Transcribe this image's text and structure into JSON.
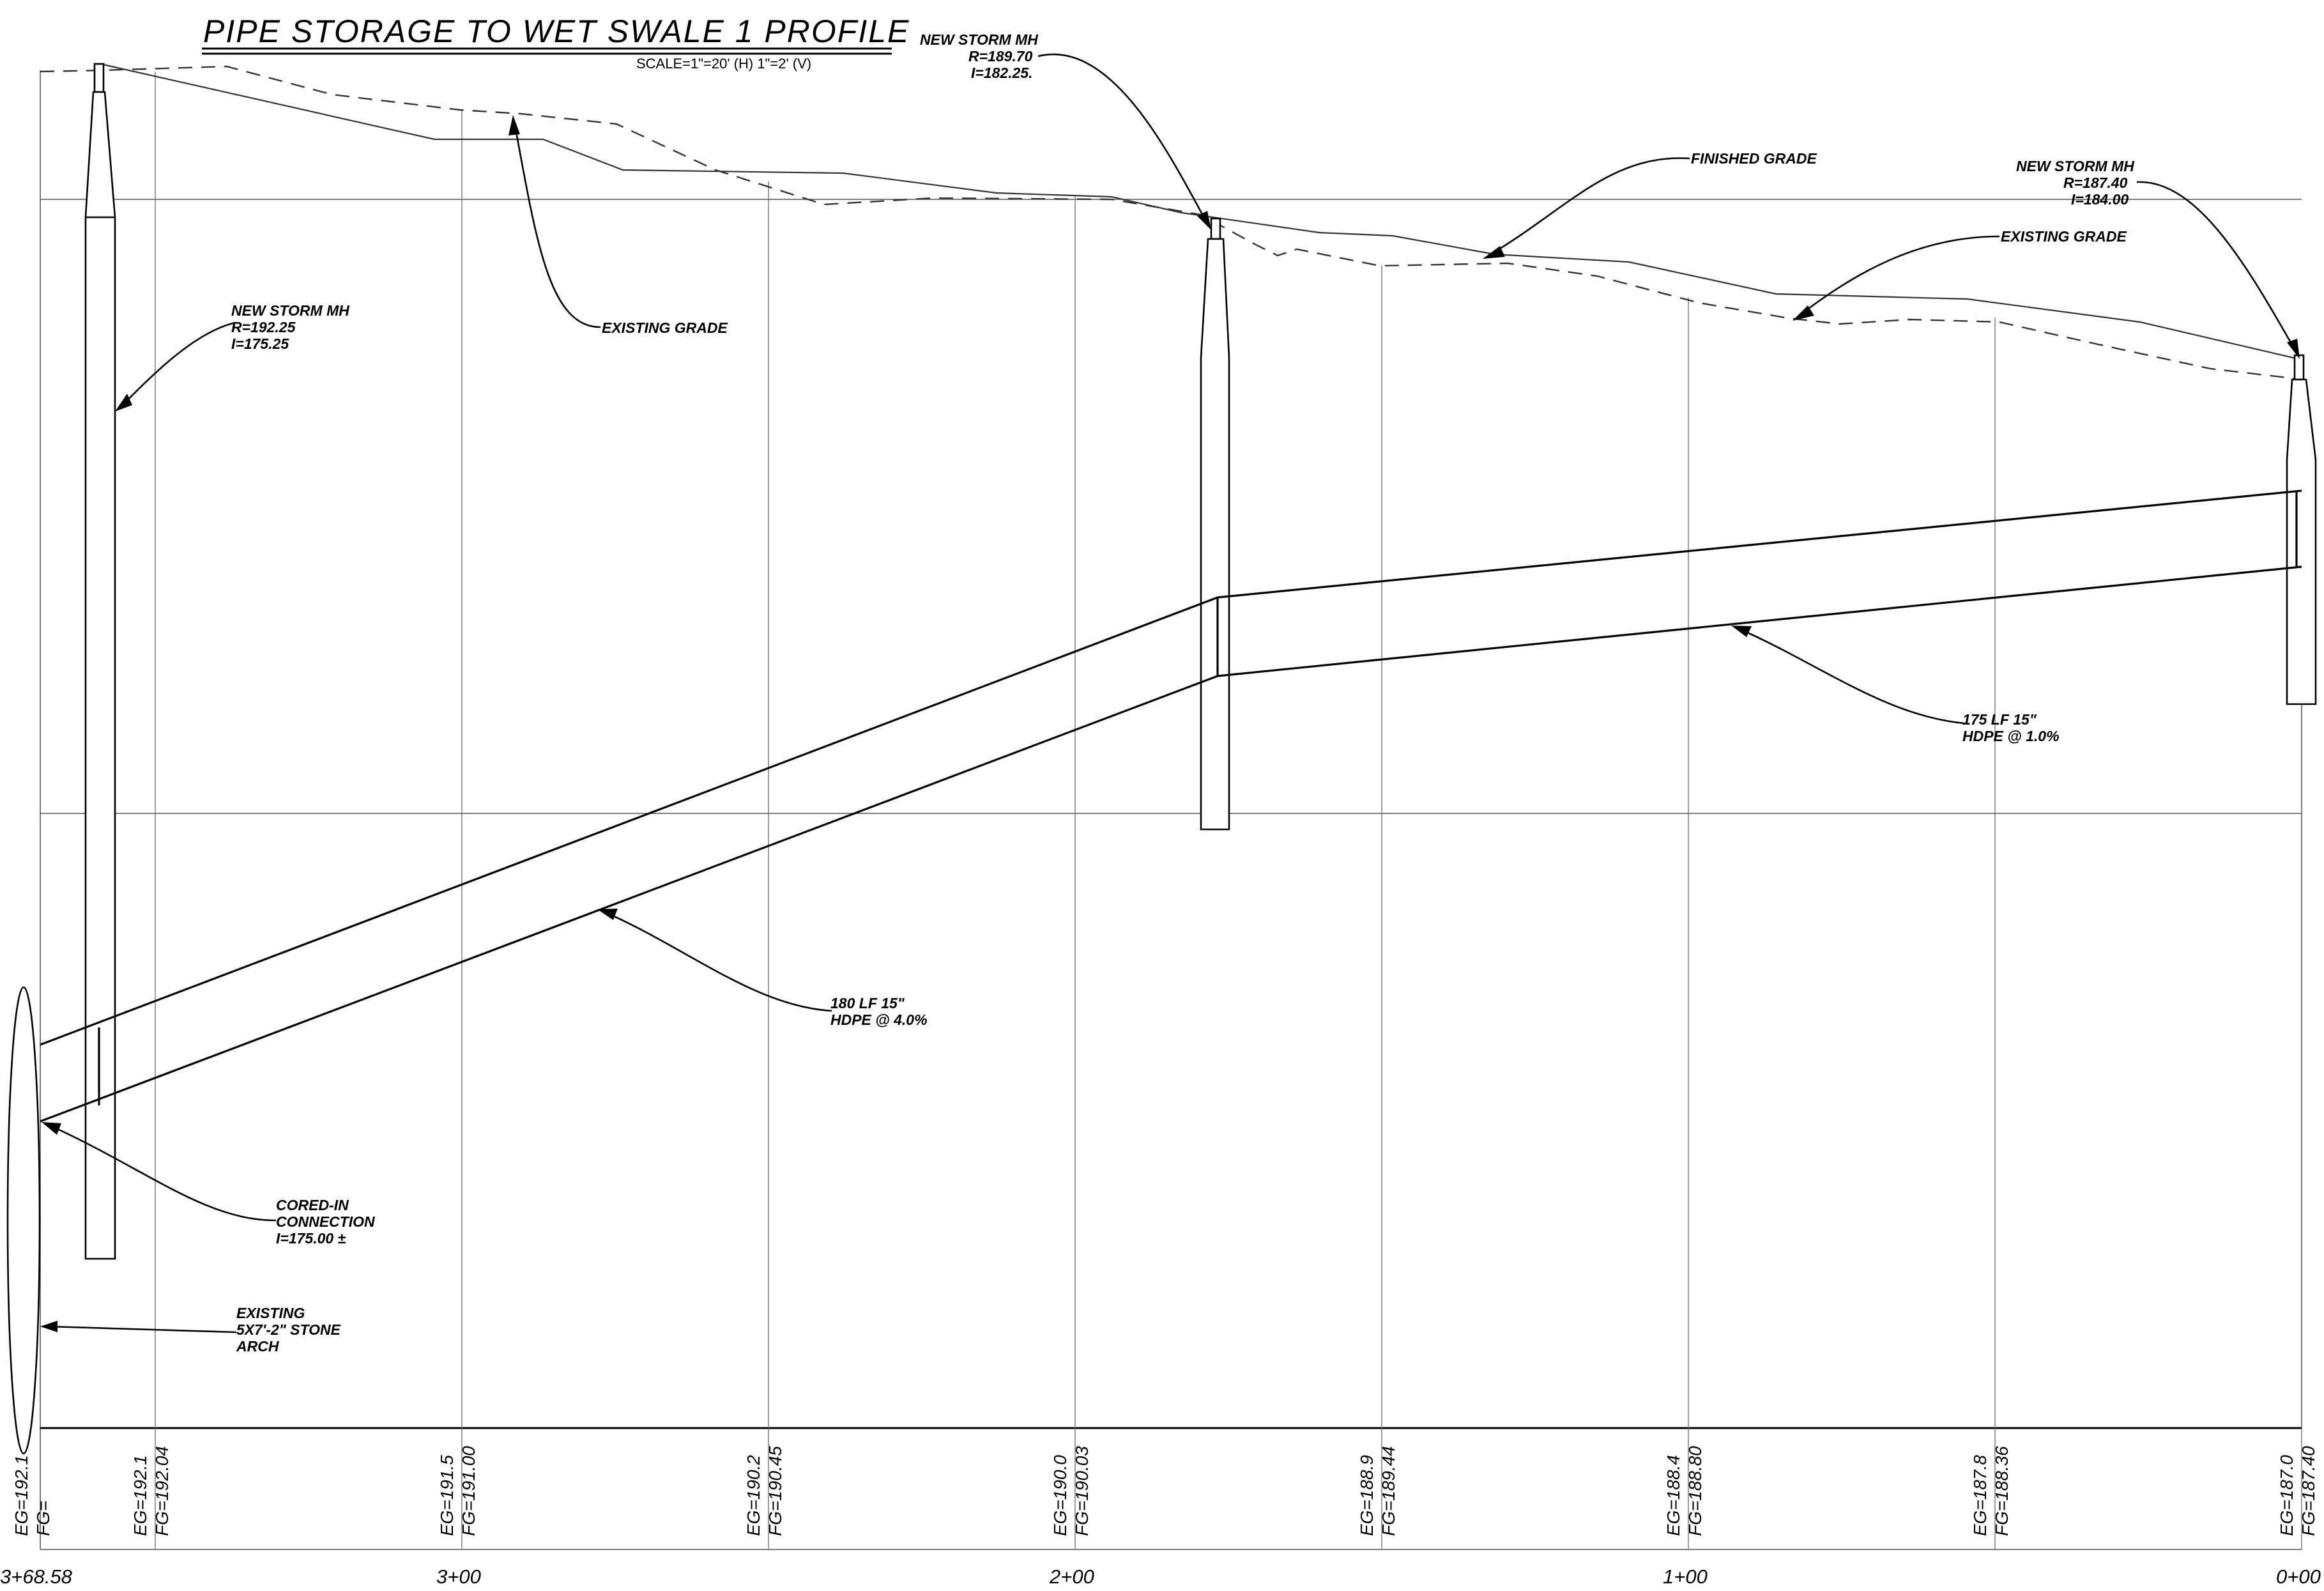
{
  "title": "PIPE STORAGE TO WET SWALE 1 PROFILE",
  "scale": "SCALE=1\"=20' (H) 1\"=2' (V)",
  "callouts": {
    "mh_left": [
      "NEW STORM MH",
      "R=192.25",
      "I=175.25"
    ],
    "mh_mid": [
      "NEW STORM MH",
      "R=189.70",
      "I=182.25."
    ],
    "mh_right": [
      "NEW STORM MH",
      "R=187.40",
      "I=184.00"
    ],
    "existing_grade_left": "EXISTING GRADE",
    "existing_grade_right": "EXISTING GRADE",
    "finished_grade": "FINISHED GRADE",
    "pipe_right": [
      "175 LF 15\"",
      "HDPE @ 1.0%"
    ],
    "pipe_left": [
      "180 LF 15\"",
      "HDPE @ 4.0%"
    ],
    "cored_in": [
      "CORED-IN",
      "CONNECTION",
      "I=175.00 ±"
    ],
    "arch": [
      "EXISTING",
      "5X7'-2\" STONE",
      "ARCH"
    ]
  },
  "elevation_labels": [
    {
      "eg": "EG=192.1",
      "fg": "FG="
    },
    {
      "eg": "EG=192.1",
      "fg": "FG=192.04"
    },
    {
      "eg": "EG=191.5",
      "fg": "FG=191.00"
    },
    {
      "eg": "EG=190.2",
      "fg": "FG=190.45"
    },
    {
      "eg": "EG=190.0",
      "fg": "FG=190.03"
    },
    {
      "eg": "EG=188.9",
      "fg": "FG=189.44"
    },
    {
      "eg": "EG=188.4",
      "fg": "FG=188.80"
    },
    {
      "eg": "EG=187.8",
      "fg": "FG=188.36"
    },
    {
      "eg": "EG=187.0",
      "fg": "FG=187.40"
    }
  ],
  "stations": [
    "3+68.58",
    "3+00",
    "2+00",
    "1+00",
    "0+00"
  ]
}
